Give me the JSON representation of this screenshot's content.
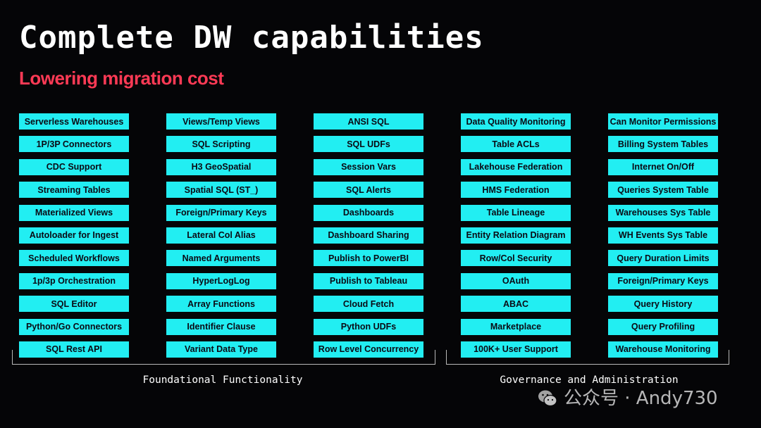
{
  "slide": {
    "title": "Complete DW capabilities",
    "subtitle": "Lowering migration cost",
    "accent_color": "#ff3a55",
    "cell_color": "#22eef2"
  },
  "columns": [
    {
      "items": [
        "Serverless Warehouses",
        "1P/3P Connectors",
        "CDC Support",
        "Streaming Tables",
        "Materialized Views",
        "Autoloader for Ingest",
        "Scheduled Workflows",
        "1p/3p Orchestration",
        "SQL Editor",
        "Python/Go Connectors",
        "SQL Rest API"
      ]
    },
    {
      "items": [
        "Views/Temp Views",
        "SQL Scripting",
        "H3 GeoSpatial",
        "Spatial SQL (ST_)",
        "Foreign/Primary Keys",
        "Lateral Col Alias",
        "Named Arguments",
        "HyperLogLog",
        "Array Functions",
        "Identifier Clause",
        "Variant Data Type"
      ]
    },
    {
      "items": [
        "ANSI SQL",
        "SQL UDFs",
        "Session Vars",
        "SQL Alerts",
        "Dashboards",
        "Dashboard Sharing",
        "Publish to PowerBI",
        "Publish to Tableau",
        "Cloud Fetch",
        "Python UDFs",
        "Row Level Concurrency"
      ]
    },
    {
      "items": [
        "Data Quality Monitoring",
        "Table ACLs",
        "Lakehouse Federation",
        "HMS Federation",
        "Table Lineage",
        "Entity Relation Diagram",
        "Row/Col Security",
        "OAuth",
        "ABAC",
        "Marketplace",
        "100K+ User Support"
      ]
    },
    {
      "items": [
        "Can Monitor Permissions",
        "Billing System Tables",
        "Internet On/Off",
        "Queries System Table",
        "Warehouses Sys Table",
        "WH Events Sys Table",
        "Query Duration Limits",
        "Foreign/Primary Keys",
        "Query History",
        "Query Profiling",
        "Warehouse Monitoring"
      ]
    }
  ],
  "groups": {
    "foundational": "Foundational Functionality",
    "governance": "Governance and Administration"
  },
  "watermark": {
    "text": "公众号 · Andy730",
    "icon": "wechat-icon"
  }
}
